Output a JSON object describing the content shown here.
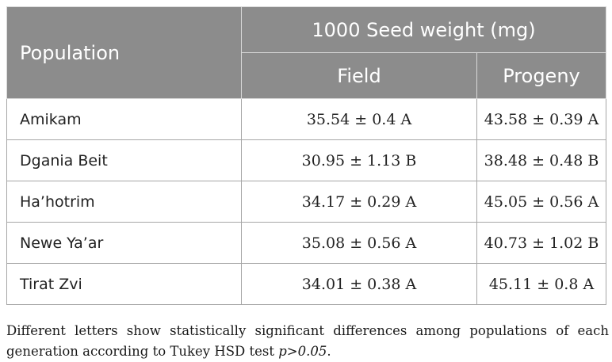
{
  "table": {
    "header": {
      "population": "Population",
      "group": "1000 Seed weight (mg)",
      "field": "Field",
      "progeny": "Progeny"
    },
    "rows": [
      {
        "population": "Amikam",
        "field": "35.54 ± 0.4 A",
        "progeny": "43.58 ± 0.39 A"
      },
      {
        "population": "Dgania Beit",
        "field": "30.95 ± 1.13 B",
        "progeny": "38.48 ± 0.48 B"
      },
      {
        "population": "Ha’hotrim",
        "field": "34.17 ± 0.29 A",
        "progeny": "45.05 ± 0.56 A"
      },
      {
        "population": "Newe Ya’ar",
        "field": "35.08 ± 0.56 A",
        "progeny": "40.73 ± 1.02 B"
      },
      {
        "population": "Tirat Zvi",
        "field": "34.01 ± 0.38 A",
        "progeny": "45.11 ± 0.8 A"
      }
    ]
  },
  "footnote": {
    "text": "Different letters show statistically significant differences among populations of each generation according to Tukey HSD test ",
    "italic": "p>0.05",
    "end": "."
  },
  "colors": {
    "header_bg": "#8c8c8c",
    "header_text": "#ffffff",
    "border": "#a6a6a6"
  }
}
